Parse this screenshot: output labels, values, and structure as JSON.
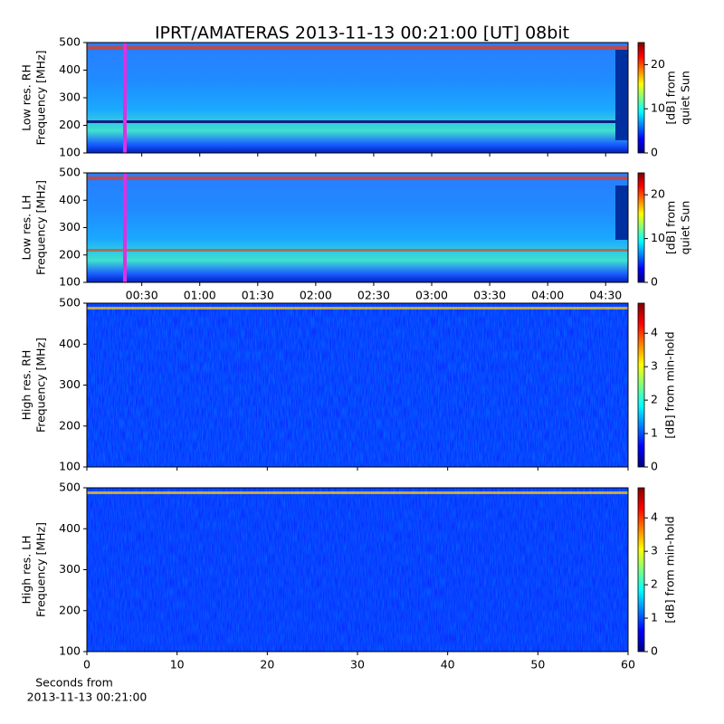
{
  "chart_data": [
    {
      "type": "heatmap",
      "title": "IPRT/AMATERAS 2013-11-13 00:21:00 [UT]   08bit",
      "ylabel": [
        "Low res. RH",
        "Frequency [MHz]"
      ],
      "ylim": [
        100,
        500
      ],
      "yticks": [
        100,
        200,
        300,
        400,
        500
      ],
      "colormap": "jet",
      "clim": [
        0,
        25
      ],
      "cticks": [
        0,
        10,
        20
      ],
      "clabel": [
        "[dB] from",
        "quiet Sun"
      ]
    },
    {
      "type": "heatmap",
      "ylabel": [
        "Low res. LH",
        "Frequency [MHz]"
      ],
      "ylim": [
        100,
        500
      ],
      "yticks": [
        100,
        200,
        300,
        400,
        500
      ],
      "xlim": [
        1.6,
        281.6
      ],
      "xticks": [
        {
          "value": 30,
          "label": "00:30"
        },
        {
          "value": 60,
          "label": "01:00"
        },
        {
          "value": 90,
          "label": "01:30"
        },
        {
          "value": 120,
          "label": "02:00"
        },
        {
          "value": 150,
          "label": "02:30"
        },
        {
          "value": 180,
          "label": "03:00"
        },
        {
          "value": 210,
          "label": "03:30"
        },
        {
          "value": 240,
          "label": "04:00"
        },
        {
          "value": 270,
          "label": "04:30"
        }
      ],
      "colormap": "jet",
      "clim": [
        0,
        25
      ],
      "cticks": [
        0,
        10,
        20
      ],
      "clabel": [
        "[dB] from",
        "quiet Sun"
      ]
    },
    {
      "type": "heatmap",
      "ylabel": [
        "High res. RH",
        "Frequency [MHz]"
      ],
      "ylim": [
        100,
        500
      ],
      "yticks": [
        100,
        200,
        300,
        400,
        500
      ],
      "colormap": "jet",
      "clim": [
        0,
        4.9
      ],
      "cticks": [
        0,
        1,
        2,
        3,
        4
      ],
      "clabel": [
        "[dB] from min-hold"
      ]
    },
    {
      "type": "heatmap",
      "ylabel": [
        "High res. LH",
        "Frequency [MHz]"
      ],
      "ylim": [
        100,
        500
      ],
      "yticks": [
        100,
        200,
        300,
        400,
        500
      ],
      "xlim": [
        0,
        60
      ],
      "xticks": [
        0,
        10,
        20,
        30,
        40,
        50,
        60
      ],
      "xlabel": [
        "Seconds from",
        "2013-11-13 00:21:00"
      ],
      "colormap": "jet",
      "clim": [
        0,
        4.9
      ],
      "cticks": [
        0,
        1,
        2,
        3,
        4
      ],
      "clabel": [
        "[dB] from min-hold"
      ]
    }
  ]
}
